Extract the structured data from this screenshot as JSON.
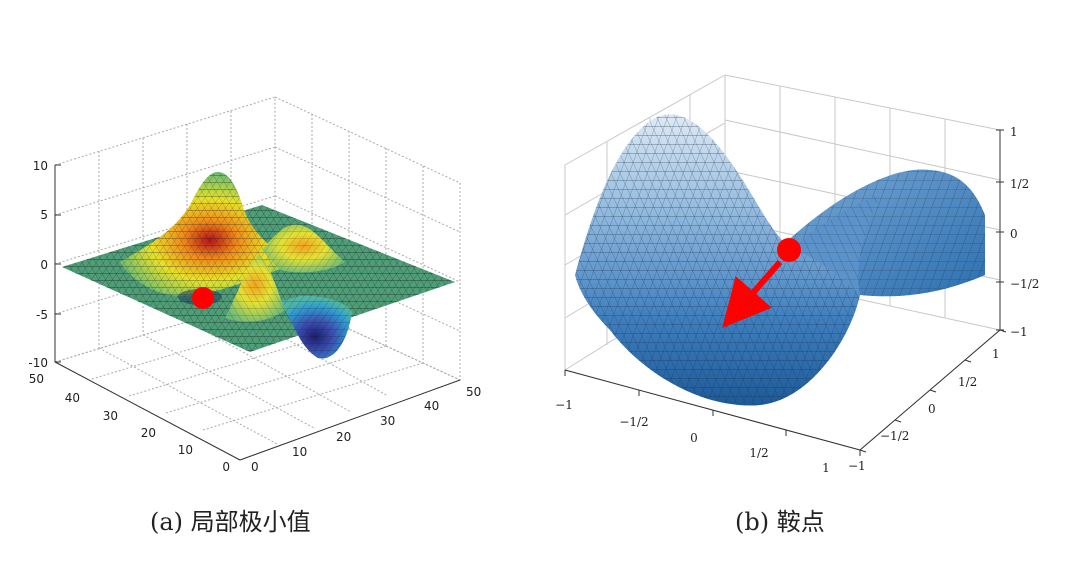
{
  "panel_a": {
    "caption": "(a) 局部极小值",
    "z_ticks": [
      "10",
      "5",
      "0",
      "-5",
      "-10"
    ],
    "y_ticks": [
      "50",
      "40",
      "30",
      "20",
      "10",
      "0"
    ],
    "x_ticks": [
      "0",
      "10",
      "20",
      "30",
      "40",
      "50"
    ]
  },
  "panel_b": {
    "caption": "(b) 鞍点",
    "z_ticks": [
      "1",
      "1/2",
      "0",
      "−1/2",
      "−1"
    ],
    "x_ticks": [
      "−1",
      "−1/2",
      "0",
      "1/2",
      "1"
    ],
    "y_ticks": [
      "1",
      "1/2",
      "0",
      "−1/2",
      "−1"
    ]
  },
  "colors": {
    "marker": "#ff0000",
    "arrow": "#ff0000",
    "saddle_surface": "#4a8fc8",
    "grid": "#b0b0b0"
  }
}
